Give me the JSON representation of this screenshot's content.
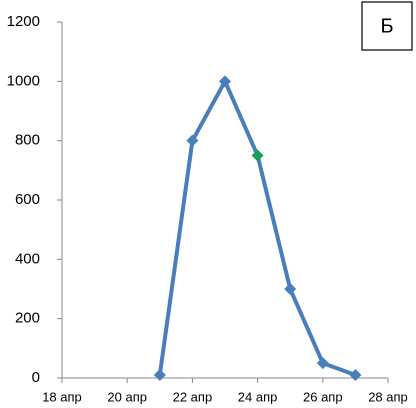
{
  "chart_data": {
    "type": "line",
    "panel_label": "Б",
    "x": [
      21,
      22,
      23,
      24,
      25,
      26,
      27
    ],
    "series": [
      {
        "color": "#4a7ebb",
        "values": [
          10,
          800,
          1000,
          750,
          300,
          50,
          10
        ],
        "marker_colors": [
          "#4a7ebb",
          "#4a7ebb",
          "#4a7ebb",
          "#1e9e50",
          "#4a7ebb",
          "#4a7ebb",
          "#4a7ebb"
        ]
      }
    ],
    "xlim": [
      18,
      28
    ],
    "xticks": [
      {
        "value": 18,
        "label": "18 апр"
      },
      {
        "value": 20,
        "label": "20 апр"
      },
      {
        "value": 22,
        "label": "22 апр"
      },
      {
        "value": 24,
        "label": "24 апр"
      },
      {
        "value": 26,
        "label": "26 апр"
      },
      {
        "value": 28,
        "label": "28 апр"
      }
    ],
    "ylim": [
      0,
      1200
    ],
    "yticks": [
      0,
      200,
      400,
      600,
      800,
      1000,
      1200
    ],
    "grid": false
  }
}
